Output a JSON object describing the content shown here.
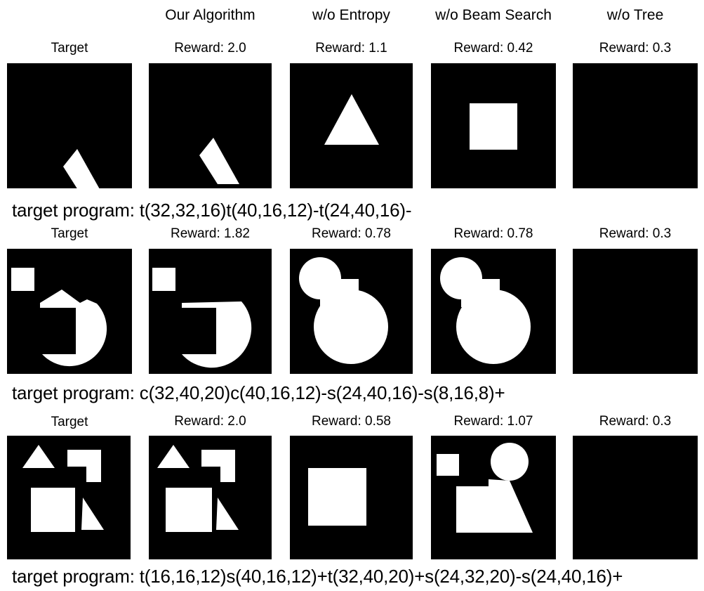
{
  "columns": [
    "",
    "Our Algorithm",
    "w/o Entropy",
    "w/o Beam Search",
    "w/o Tree"
  ],
  "rows": [
    {
      "labels": [
        "Target",
        "Reward: 2.0",
        "Reward: 1.1",
        "Reward: 0.42",
        "Reward: 0.3"
      ],
      "program": "target program: t(32,32,16)t(40,16,12)-t(24,40,16)-"
    },
    {
      "labels": [
        "Target",
        "Reward: 1.82",
        "Reward: 0.78",
        "Reward: 0.78",
        "Reward: 0.3"
      ],
      "program": "target program: c(32,40,20)c(40,16,12)-s(24,40,16)-s(8,16,8)+"
    },
    {
      "labels": [
        "Target",
        "Reward: 2.0",
        "Reward: 0.58",
        "Reward: 1.07",
        "Reward: 0.3"
      ],
      "program": "target program: t(16,16,12)s(40,16,12)+t(32,40,20)+s(24,32,20)-s(24,40,16)+"
    }
  ],
  "colors": {
    "background": "#000000",
    "shape": "#ffffff"
  }
}
